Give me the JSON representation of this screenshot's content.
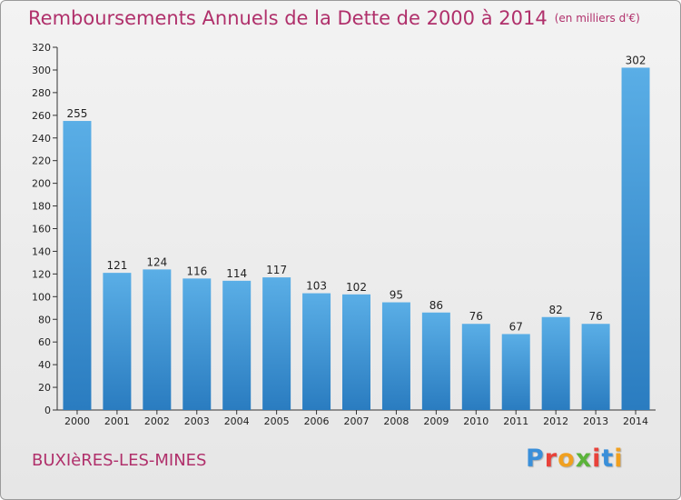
{
  "header": {
    "title": "Remboursements Annuels de la Dette de 2000 à 2014",
    "unit": "(en milliers d'€)"
  },
  "footer": {
    "commune": "BUXIèRES-LES-MINES",
    "logo": "Proxiti"
  },
  "chart_data": {
    "type": "bar",
    "title": "Remboursements Annuels de la Dette de 2000 à 2014",
    "subtitle": "(en milliers d'€)",
    "xlabel": "",
    "ylabel": "",
    "categories": [
      "2000",
      "2001",
      "2002",
      "2003",
      "2004",
      "2005",
      "2006",
      "2007",
      "2008",
      "2009",
      "2010",
      "2011",
      "2012",
      "2013",
      "2014"
    ],
    "values": [
      255,
      121,
      124,
      116,
      114,
      117,
      103,
      102,
      95,
      86,
      76,
      67,
      82,
      76,
      302
    ],
    "ylim": [
      0,
      320
    ],
    "ytick_step": 20,
    "grid": false,
    "legend": "none",
    "colors": {
      "bar_light": "#5aaee6",
      "bar_dark": "#2a7cc0",
      "axis": "#333333",
      "text": "#222222"
    }
  }
}
